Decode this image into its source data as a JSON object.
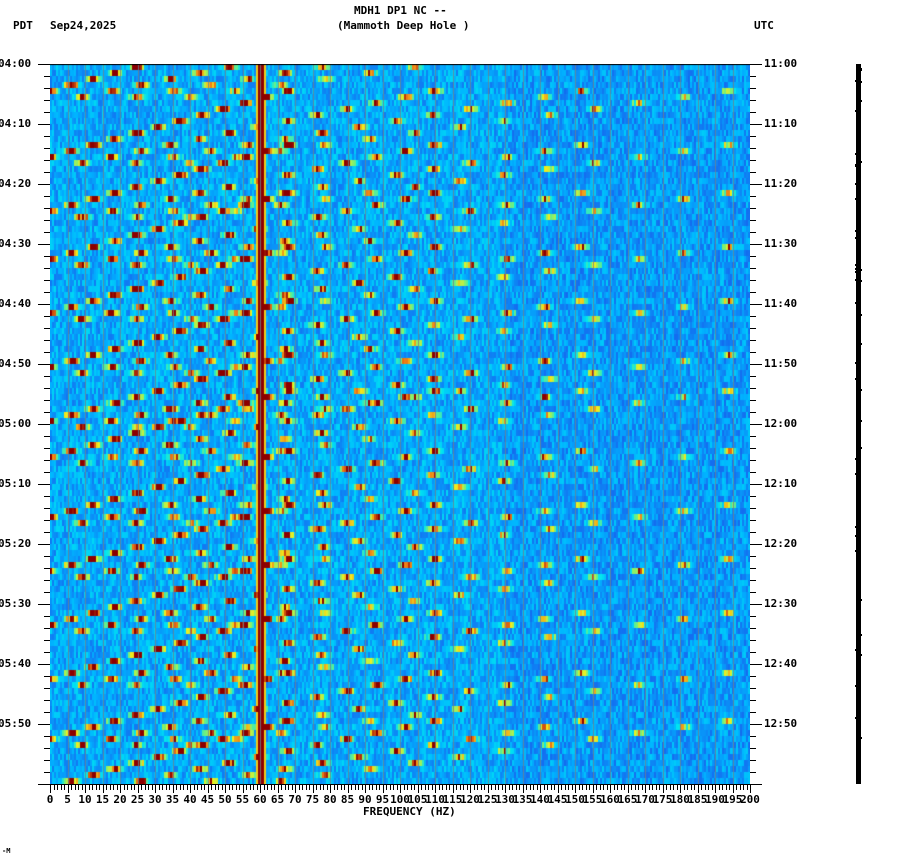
{
  "header": {
    "station": "MDH1 DP1 NC --",
    "location": "(Mammoth Deep Hole )",
    "left_tz": "PDT",
    "date": "Sep24,2025",
    "right_tz": "UTC"
  },
  "footer": {
    "mark": "-M"
  },
  "colors": {
    "background_low": "#1e78e6",
    "mid": "#00c8ff",
    "high": "#f0f020",
    "peak": "#8c0000"
  },
  "chart_data": {
    "type": "heatmap",
    "title": "MDH1 DP1 NC -- (Mammoth Deep Hole )",
    "subtitle": "Sep24,2025",
    "xlabel": "FREQUENCY (HZ)",
    "ylabel_left": "PDT",
    "ylabel_right": "UTC",
    "xlim": [
      0,
      200
    ],
    "x_ticks": [
      0,
      5,
      10,
      15,
      20,
      25,
      30,
      35,
      40,
      45,
      50,
      55,
      60,
      65,
      70,
      75,
      80,
      85,
      90,
      95,
      100,
      105,
      110,
      115,
      120,
      125,
      130,
      135,
      140,
      145,
      150,
      155,
      160,
      165,
      170,
      175,
      180,
      185,
      190,
      195,
      200
    ],
    "y_ticks_left": [
      "04:00",
      "04:10",
      "04:20",
      "04:30",
      "04:40",
      "04:50",
      "05:00",
      "05:10",
      "05:20",
      "05:30",
      "05:40",
      "05:50"
    ],
    "y_ticks_right": [
      "11:00",
      "11:10",
      "11:20",
      "11:30",
      "11:40",
      "11:50",
      "12:00",
      "12:10",
      "12:20",
      "12:30",
      "12:40",
      "12:50"
    ],
    "time_range_local": [
      "04:00",
      "06:00"
    ],
    "grid": true,
    "grid_spacing_hz": 5,
    "features": {
      "constant_line_hz": 60,
      "chirp_sweeps": "repeating upward-curving harmonic arcs roughly every 5-10 min, starting ~20-25 Hz up to ~130 Hz",
      "noise_floor": "blue/cyan broadband, energy fades above ~130 Hz"
    }
  }
}
